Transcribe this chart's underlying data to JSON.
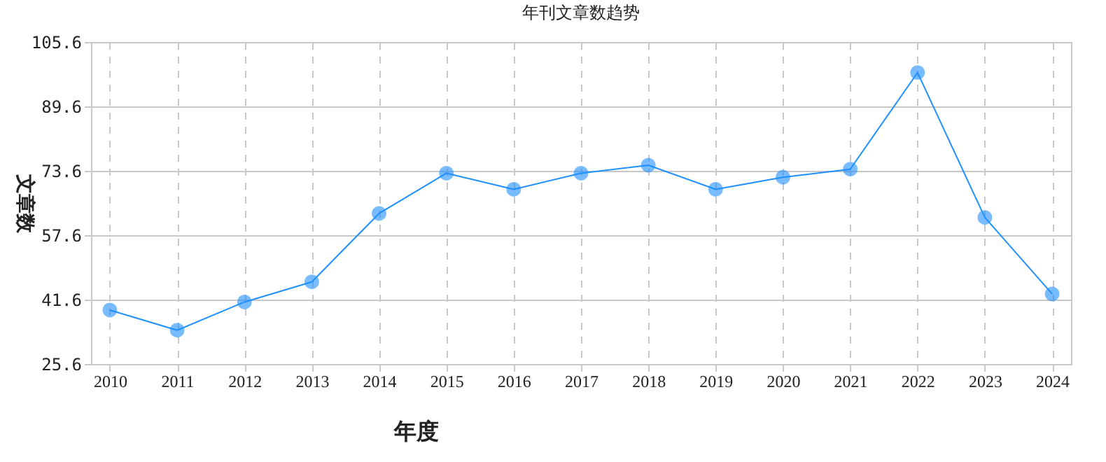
{
  "chart_data": {
    "type": "line",
    "title": "年刊文章数趋势",
    "xlabel": "年度",
    "ylabel": "文章数",
    "categories": [
      "2010",
      "2011",
      "2012",
      "2013",
      "2014",
      "2015",
      "2016",
      "2017",
      "2018",
      "2019",
      "2020",
      "2021",
      "2022",
      "2023",
      "2024"
    ],
    "series": [
      {
        "color": "#1e90ff",
        "values": [
          39,
          34,
          41,
          46,
          63,
          73,
          69,
          73,
          75,
          69,
          72,
          74,
          98,
          62,
          43
        ]
      }
    ],
    "ylim": [
      25.6,
      105.6
    ],
    "yticks": [
      25.6,
      41.6,
      57.6,
      73.6,
      89.6,
      105.6
    ],
    "grid": true,
    "marker": "circle",
    "line_style": "solid"
  }
}
